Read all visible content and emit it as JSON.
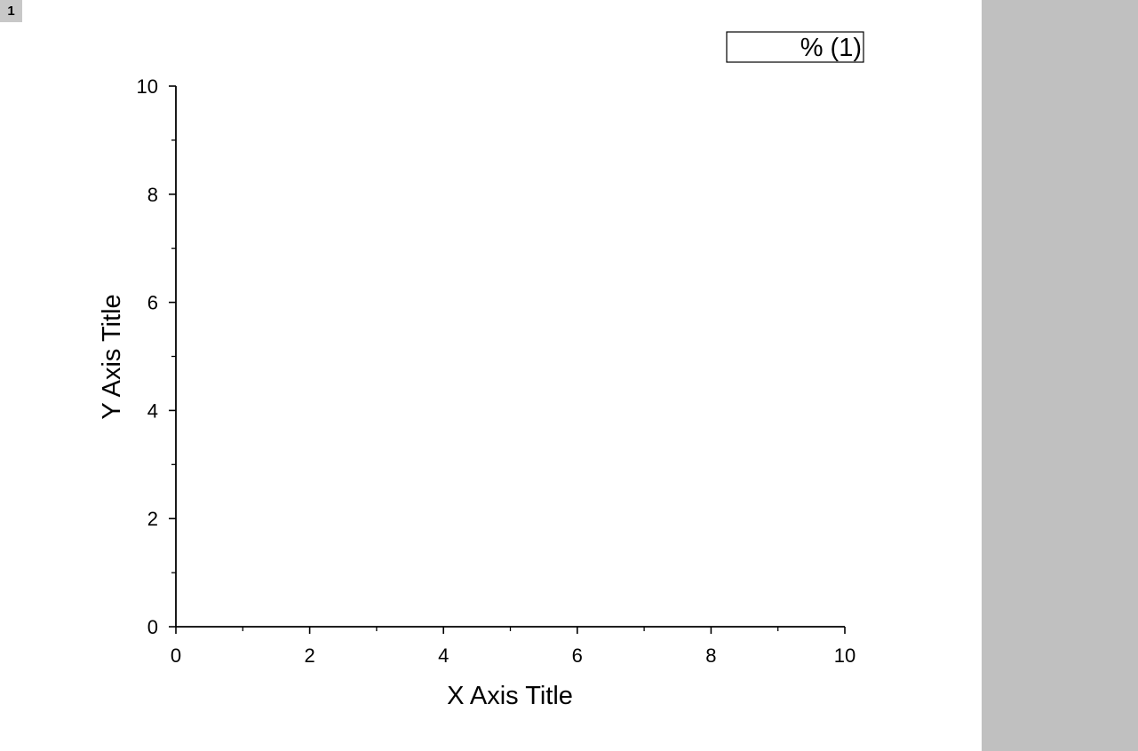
{
  "layer_tab": {
    "label": "1"
  },
  "legend": {
    "text": "% (1)"
  },
  "chart_data": {
    "type": "scatter",
    "title": "",
    "xlabel": "X Axis Title",
    "ylabel": "Y Axis Title",
    "xlim": [
      0,
      10
    ],
    "ylim": [
      0,
      10
    ],
    "x_major_ticks": [
      "0",
      "2",
      "4",
      "6",
      "8",
      "10"
    ],
    "y_major_ticks": [
      "0",
      "2",
      "4",
      "6",
      "8",
      "10"
    ],
    "minor_ticks_per_major": 1,
    "grid": false,
    "legend_position": "top-right",
    "series": [
      {
        "name": "% (1)",
        "x": [],
        "y": []
      }
    ]
  },
  "colors": {
    "background": "#ffffff",
    "right_panel": "#c0c0c0",
    "tab": "#c8c8c8",
    "axis": "#000000"
  }
}
